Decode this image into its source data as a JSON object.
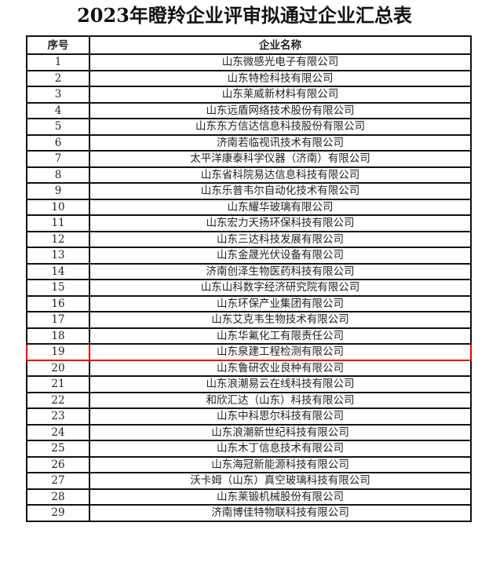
{
  "title": "2023年瞪羚企业评审拟通过企业汇总表",
  "table": {
    "headers": [
      "序号",
      "企业名称"
    ],
    "highlight_color": "#e00000",
    "highlighted_row": "19",
    "rows": [
      {
        "no": "1",
        "name": "山东微感光电子有限公司"
      },
      {
        "no": "2",
        "name": "山东特检科技有限公司"
      },
      {
        "no": "3",
        "name": "山东莱威新材料有限公司"
      },
      {
        "no": "4",
        "name": "山东远盾网络技术股份有限公司"
      },
      {
        "no": "5",
        "name": "山东东方信达信息科技股份有限公司"
      },
      {
        "no": "6",
        "name": "济南若临视讯技术有限公司"
      },
      {
        "no": "7",
        "name": "太平洋康泰科学仪器（济南）有限公司"
      },
      {
        "no": "8",
        "name": "山东省科院易达信息科技有限公司"
      },
      {
        "no": "9",
        "name": "山东乐普韦尔自动化技术有限公司"
      },
      {
        "no": "10",
        "name": "山东耀华玻璃有限公司"
      },
      {
        "no": "11",
        "name": "山东宏力天扬环保科技有限公司"
      },
      {
        "no": "12",
        "name": "山东三达科技发展有限公司"
      },
      {
        "no": "13",
        "name": "山东金晟光伏设备有限公司"
      },
      {
        "no": "14",
        "name": "济南创泽生物医药科技有限公司"
      },
      {
        "no": "15",
        "name": "山东山科数字经济研究院有限公司"
      },
      {
        "no": "16",
        "name": "山东环保产业集团有限公司"
      },
      {
        "no": "17",
        "name": "山东艾克韦生物技术有限公司"
      },
      {
        "no": "18",
        "name": "山东华氟化工有限责任公司"
      },
      {
        "no": "19",
        "name": "山东泉建工程检测有限公司"
      },
      {
        "no": "20",
        "name": "山东鲁研农业良种有限公司"
      },
      {
        "no": "21",
        "name": "山东浪潮易云在线科技有限公司"
      },
      {
        "no": "22",
        "name": "和欣汇达（山东）科技有限公司"
      },
      {
        "no": "23",
        "name": "山东中科思尔科技有限公司"
      },
      {
        "no": "24",
        "name": "山东浪潮新世纪科技有限公司"
      },
      {
        "no": "25",
        "name": "山东木丁信息技术有限公司"
      },
      {
        "no": "26",
        "name": "山东海冠新能源科技有限公司"
      },
      {
        "no": "27",
        "name": "沃卡姆（山东）真空玻璃科技有限公司"
      },
      {
        "no": "28",
        "name": "山东莱锻机械股份有限公司"
      },
      {
        "no": "29",
        "name": "济南博佳特物联科技有限公司"
      }
    ]
  }
}
